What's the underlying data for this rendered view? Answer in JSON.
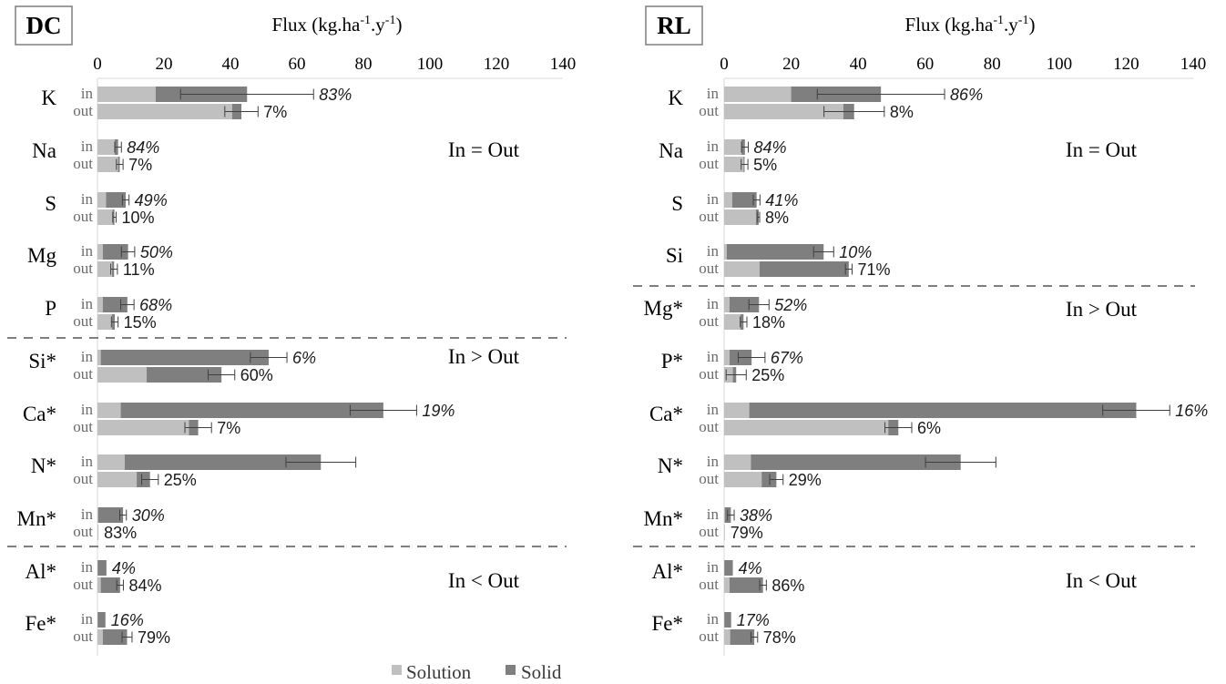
{
  "colors": {
    "solution": "#c0c0c0",
    "solid": "#7f7f7f",
    "divider": "#7f7f7f",
    "axis": "#d9d9d9",
    "errorbar": "#404040"
  },
  "legend": {
    "solution": "Solution",
    "solid": "Solid"
  },
  "chart_data": [
    {
      "type": "bar",
      "orientation": "horizontal",
      "stacked": true,
      "panel": "DC",
      "xlabel": "Flux (kg.ha-1.y-1)",
      "xlim": [
        0,
        140
      ],
      "ticks": [
        0,
        20,
        40,
        60,
        80,
        100,
        120,
        140
      ],
      "regions": [
        "In = Out",
        "In > Out",
        "In < Out"
      ],
      "elements": [
        {
          "name": "K",
          "region": 0,
          "in": {
            "solution": 17.5,
            "solid": 27.5,
            "err": 20,
            "pct": "83%"
          },
          "out": {
            "solution": 40.5,
            "solid": 2.8,
            "err": 5,
            "pct": "7%"
          }
        },
        {
          "name": "Na",
          "region": 0,
          "in": {
            "solution": 5.2,
            "solid": 1.0,
            "err": 1,
            "pct": "84%"
          },
          "out": {
            "solution": 6.2,
            "solid": 0.5,
            "err": 1,
            "pct": "7%"
          }
        },
        {
          "name": "S",
          "region": 0,
          "in": {
            "solution": 2.6,
            "solid": 5.9,
            "err": 1,
            "pct": "49%"
          },
          "out": {
            "solution": 4.6,
            "solid": 0.5,
            "err": 0.5,
            "pct": "10%"
          }
        },
        {
          "name": "Mg",
          "region": 0,
          "in": {
            "solution": 1.6,
            "solid": 7.6,
            "err": 2,
            "pct": "50%"
          },
          "out": {
            "solution": 4.4,
            "solid": 0.6,
            "err": 1,
            "pct": "11%"
          }
        },
        {
          "name": "P",
          "region": 0,
          "in": {
            "solution": 1.6,
            "solid": 7.4,
            "err": 2,
            "pct": "68%"
          },
          "out": {
            "solution": 4.4,
            "solid": 0.8,
            "err": 1,
            "pct": "15%"
          }
        },
        {
          "name": "Si*",
          "region": 1,
          "in": {
            "solution": 1.0,
            "solid": 50.5,
            "err": 5.5,
            "pct": "6%"
          },
          "out": {
            "solution": 14.8,
            "solid": 22.5,
            "err": 4,
            "pct": "60%"
          }
        },
        {
          "name": "Ca*",
          "region": 1,
          "in": {
            "solution": 7.0,
            "solid": 79.0,
            "err": 10,
            "pct": "19%"
          },
          "out": {
            "solution": 27.5,
            "solid": 2.8,
            "err": 4,
            "pct": "7%"
          }
        },
        {
          "name": "N*",
          "region": 1,
          "in": {
            "solution": 8.2,
            "solid": 59.0,
            "err": 10.5,
            "pct": ""
          },
          "out": {
            "solution": 11.8,
            "solid": 4.0,
            "err": 2.5,
            "pct": "25%"
          }
        },
        {
          "name": "Mn*",
          "region": 1,
          "in": {
            "solution": 0.2,
            "solid": 7.5,
            "err": 1,
            "pct": "30%"
          },
          "out": {
            "solution": 0.3,
            "solid": 0.0,
            "err": 0,
            "pct": "83%"
          }
        },
        {
          "name": "Al*",
          "region": 2,
          "in": {
            "solution": 0.1,
            "solid": 2.6,
            "err": 0,
            "pct": "4%"
          },
          "out": {
            "solution": 1.0,
            "solid": 5.8,
            "err": 1,
            "pct": "84%"
          }
        },
        {
          "name": "Fe*",
          "region": 2,
          "in": {
            "solution": 0.1,
            "solid": 2.3,
            "err": 0,
            "pct": "16%"
          },
          "out": {
            "solution": 1.6,
            "solid": 7.3,
            "err": 1.5,
            "pct": "79%"
          }
        }
      ]
    },
    {
      "type": "bar",
      "orientation": "horizontal",
      "stacked": true,
      "panel": "RL",
      "xlabel": "Flux (kg.ha-1.y-1)",
      "xlim": [
        0,
        140
      ],
      "ticks": [
        0,
        20,
        40,
        60,
        80,
        100,
        120,
        140
      ],
      "regions": [
        "In = Out",
        "In > Out",
        "In < Out"
      ],
      "elements": [
        {
          "name": "K",
          "region": 0,
          "in": {
            "solution": 20.0,
            "solid": 26.8,
            "err": 19,
            "pct": "86%"
          },
          "out": {
            "solution": 35.6,
            "solid": 3.2,
            "err": 9,
            "pct": "8%"
          }
        },
        {
          "name": "Na",
          "region": 0,
          "in": {
            "solution": 5.2,
            "solid": 1.0,
            "err": 1,
            "pct": "84%"
          },
          "out": {
            "solution": 5.8,
            "solid": 0.3,
            "err": 1,
            "pct": "5%"
          }
        },
        {
          "name": "S",
          "region": 0,
          "in": {
            "solution": 2.4,
            "solid": 7.3,
            "err": 1,
            "pct": "41%"
          },
          "out": {
            "solution": 9.5,
            "solid": 0.8,
            "err": 0.3,
            "pct": "8%"
          }
        },
        {
          "name": "Si",
          "region": 0,
          "in": {
            "solution": 0.8,
            "solid": 28.9,
            "err": 3,
            "pct": "10%"
          },
          "out": {
            "solution": 10.6,
            "solid": 26.6,
            "err": 1,
            "pct": "71%"
          }
        },
        {
          "name": "Mg*",
          "region": 1,
          "in": {
            "solution": 1.6,
            "solid": 8.8,
            "err": 3,
            "pct": "52%"
          },
          "out": {
            "solution": 4.9,
            "solid": 0.9,
            "err": 1,
            "pct": "18%"
          }
        },
        {
          "name": "P*",
          "region": 1,
          "in": {
            "solution": 1.6,
            "solid": 6.6,
            "err": 4,
            "pct": "67%"
          },
          "out": {
            "solution": 2.6,
            "solid": 1.0,
            "err": 3,
            "pct": "25%"
          }
        },
        {
          "name": "Ca*",
          "region": 1,
          "in": {
            "solution": 7.5,
            "solid": 115.5,
            "err": 10,
            "pct": "16%"
          },
          "out": {
            "solution": 49.0,
            "solid": 3.0,
            "err": 4,
            "pct": "6%"
          }
        },
        {
          "name": "N*",
          "region": 1,
          "in": {
            "solution": 8.0,
            "solid": 62.6,
            "err": 10.5,
            "pct": ""
          },
          "out": {
            "solution": 11.2,
            "solid": 4.4,
            "err": 2,
            "pct": "29%"
          }
        },
        {
          "name": "Mn*",
          "region": 1,
          "in": {
            "solution": 0.2,
            "solid": 1.8,
            "err": 1,
            "pct": "38%"
          },
          "out": {
            "solution": 0.2,
            "solid": 0.0,
            "err": 0,
            "pct": "79%"
          }
        },
        {
          "name": "Al*",
          "region": 2,
          "in": {
            "solution": 0.1,
            "solid": 2.5,
            "err": 0,
            "pct": "4%"
          },
          "out": {
            "solution": 1.6,
            "solid": 10.0,
            "err": 1,
            "pct": "86%"
          }
        },
        {
          "name": "Fe*",
          "region": 2,
          "in": {
            "solution": 0.1,
            "solid": 2.0,
            "err": 0,
            "pct": "17%"
          },
          "out": {
            "solution": 1.8,
            "solid": 7.2,
            "err": 1,
            "pct": "78%"
          }
        }
      ]
    }
  ]
}
